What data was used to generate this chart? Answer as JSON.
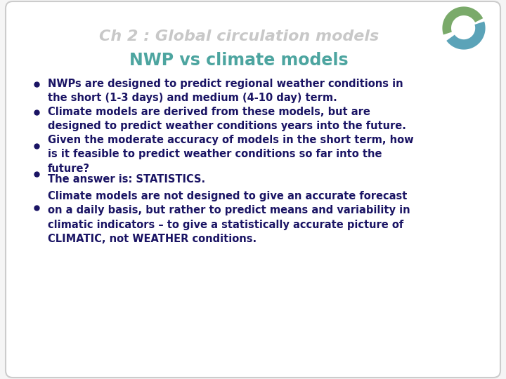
{
  "title": "NWP vs climate models",
  "chapter_title": "Ch 2 : Global circulation models",
  "title_color": "#4da5a0",
  "chapter_color": "#c8c8c8",
  "text_color": "#1a1464",
  "bg_color": "#f5f5f5",
  "card_color": "#ffffff",
  "bullet_points": [
    "NWPs are designed to predict regional weather conditions in\nthe short (1-3 days) and medium (4-10 day) term.",
    "Climate models are derived from these models, but are\ndesigned to predict weather conditions years into the future.",
    "Given the moderate accuracy of models in the short term, how\nis it feasible to predict weather conditions so far into the\nfuture?",
    "The answer is: STATISTICS.",
    "Climate models are not designed to give an accurate forecast\non a daily basis, but rather to predict means and variability in\nclimatic indicators – to give a statistically accurate picture of\nCLIMATIC, not WEATHER conditions."
  ],
  "font_size": 10.5,
  "title_font_size": 17,
  "chapter_font_size": 16
}
